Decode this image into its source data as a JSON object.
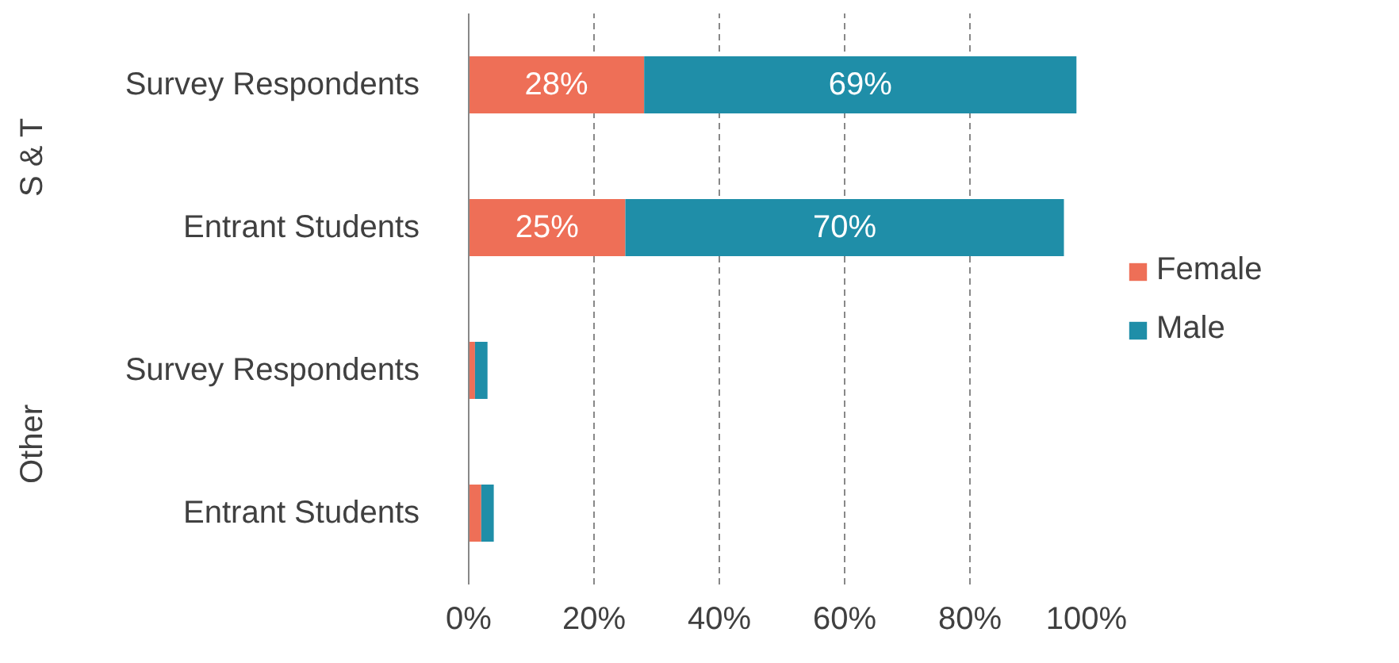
{
  "chart_data": {
    "type": "bar",
    "orientation": "horizontal",
    "stacked": true,
    "categories": [
      "Survey Respondents",
      "Entrant Students",
      "Survey Respondents",
      "Entrant Students"
    ],
    "series": [
      {
        "name": "Female",
        "color": "#ee6f57",
        "values": [
          28,
          25,
          1,
          2
        ],
        "value_labels": [
          "28%",
          "25%",
          null,
          null
        ]
      },
      {
        "name": "Male",
        "color": "#1f8ea8",
        "values": [
          69,
          70,
          2,
          2
        ],
        "value_labels": [
          "69%",
          "70%",
          null,
          null
        ]
      }
    ],
    "annotations": [
      "S & T",
      "Other"
    ],
    "xlim": [
      0,
      100
    ],
    "xticks": [
      {
        "value": 0,
        "label": "0%"
      },
      {
        "value": 20,
        "label": "20%"
      },
      {
        "value": 40,
        "label": "40%"
      },
      {
        "value": 60,
        "label": "60%"
      },
      {
        "value": 80,
        "label": "80%"
      },
      {
        "value": 100,
        "label": "100%"
      }
    ],
    "grid": "x",
    "legend": "right"
  }
}
